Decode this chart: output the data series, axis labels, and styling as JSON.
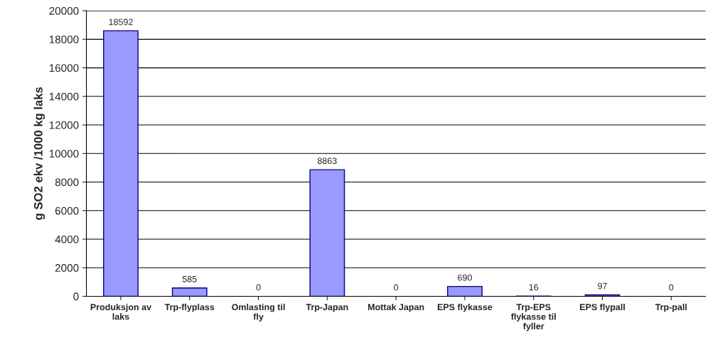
{
  "chart_data": {
    "type": "bar",
    "ylabel": "g SO2 ekv /1000 kg laks",
    "categories": [
      "Produksjon av laks",
      "Trp-flyplass",
      "Omlasting til fly",
      "Trp-Japan",
      "Mottak Japan",
      "EPS flykasse",
      "Trp-EPS flykasse til fyller",
      "EPS flypall",
      "Trp-pall"
    ],
    "values": [
      18592,
      585,
      0,
      8863,
      0,
      690,
      16,
      97,
      0
    ],
    "color": "#9999ff",
    "ylim": [
      0,
      20000
    ],
    "yticks": [
      0,
      2000,
      4000,
      6000,
      8000,
      10000,
      12000,
      14000,
      16000,
      18000,
      20000
    ],
    "grid": "y",
    "data_labels": true,
    "legend": false
  }
}
